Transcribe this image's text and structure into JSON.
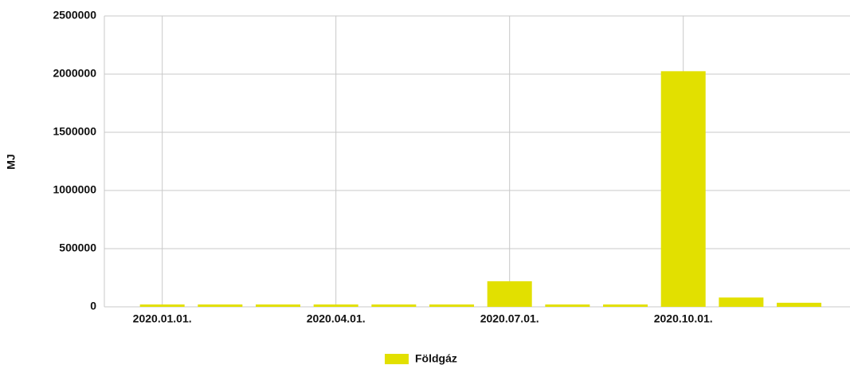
{
  "chart_data": {
    "type": "bar",
    "y_label": "MJ",
    "categories": [
      "2020.01.01.",
      null,
      null,
      "2020.04.01.",
      null,
      null,
      "2020.07.01.",
      null,
      null,
      "2020.10.01.",
      null,
      null
    ],
    "series": [
      {
        "name": "Földgáz",
        "color": "#e2e000",
        "values": [
          20000,
          20000,
          20000,
          20000,
          20000,
          20000,
          220000,
          20000,
          20000,
          2025000,
          80000,
          35000
        ]
      }
    ],
    "ylim": [
      0,
      2500000
    ],
    "yticks": [
      0,
      500000,
      1000000,
      1500000,
      2000000,
      2500000
    ],
    "grid": true,
    "legend": "bottom"
  }
}
